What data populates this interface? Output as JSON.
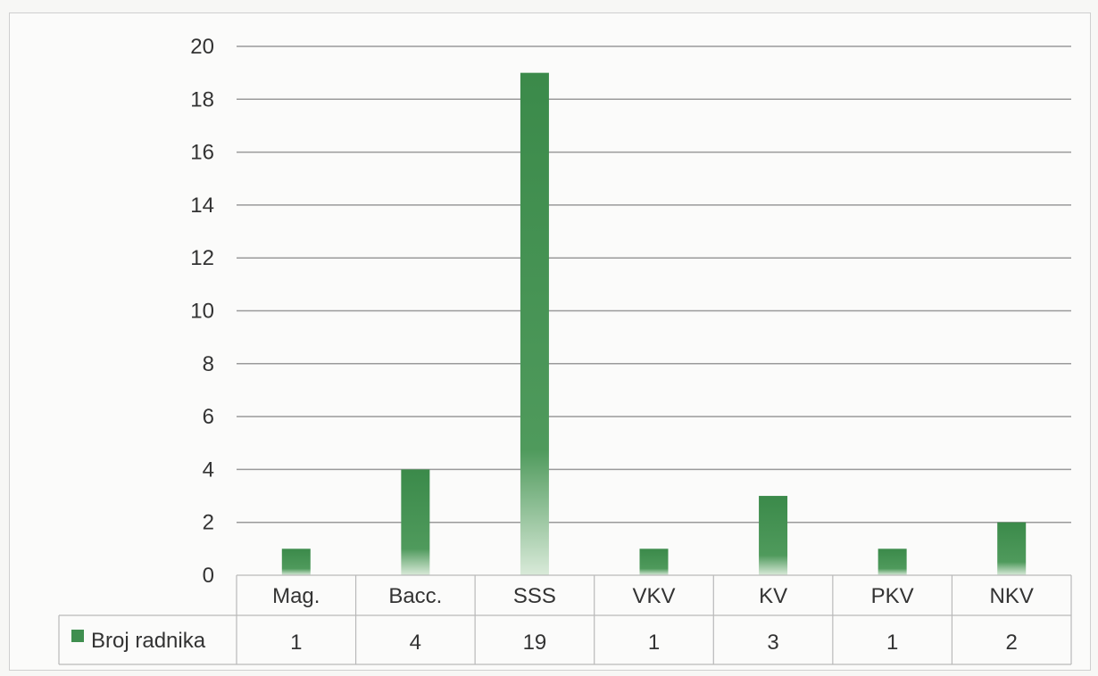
{
  "chart_data": {
    "type": "bar",
    "categories": [
      "Mag.",
      "Bacc.",
      "SSS",
      "VKV",
      "KV",
      "PKV",
      "NKV"
    ],
    "series": [
      {
        "name": "Broj radnika",
        "values": [
          1,
          4,
          19,
          1,
          3,
          1,
          2
        ],
        "color": "#3f8f4f"
      }
    ],
    "ylim": [
      0,
      20
    ],
    "yticks": [
      0,
      2,
      4,
      6,
      8,
      10,
      12,
      14,
      16,
      18,
      20
    ],
    "grid": true,
    "legend": "data-table-left",
    "data_table": true
  }
}
